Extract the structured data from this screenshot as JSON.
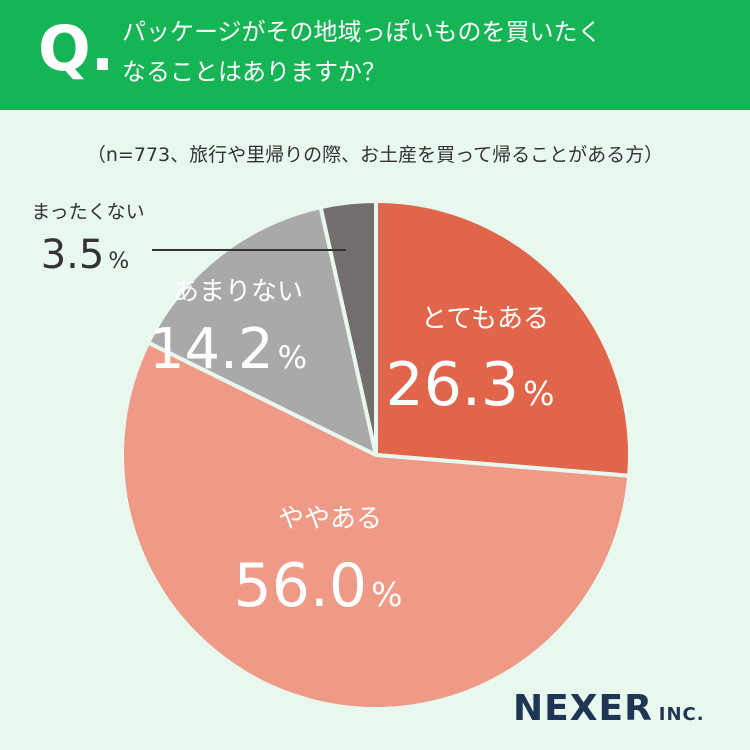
{
  "header": {
    "q_mark": "Q.",
    "question_line1": "パッケージがその地域っぽいものを買いたく",
    "question_line2": "なることはありますか？"
  },
  "sample_note": "（n=773、旅行や里帰りの際、お土産を買って帰ることがある方）",
  "brand": {
    "name": "NEXER",
    "suffix": "INC."
  },
  "colors": {
    "header_bg": "#15b454",
    "background": "#e8f8ee",
    "slice_aru": "#e0654a",
    "slice_yaya": "#ef9a86",
    "slice_amari": "#a9a9a9",
    "slice_mattaku": "#736d6d",
    "brand_text": "#1e3553"
  },
  "chart_data": {
    "type": "pie",
    "title": "",
    "unit": "%",
    "start": "12 o'clock, clockwise",
    "slices": [
      {
        "label": "とてもある",
        "value": 26.3,
        "value_text": "26.3",
        "color": "#e0654a"
      },
      {
        "label": "ややある",
        "value": 56.0,
        "value_text": "56.0",
        "color": "#ef9a86"
      },
      {
        "label": "あまりない",
        "value": 14.2,
        "value_text": "14.2",
        "color": "#a9a9a9"
      },
      {
        "label": "まったくない",
        "value": 3.5,
        "value_text": "3.5",
        "color": "#736d6d"
      }
    ]
  }
}
